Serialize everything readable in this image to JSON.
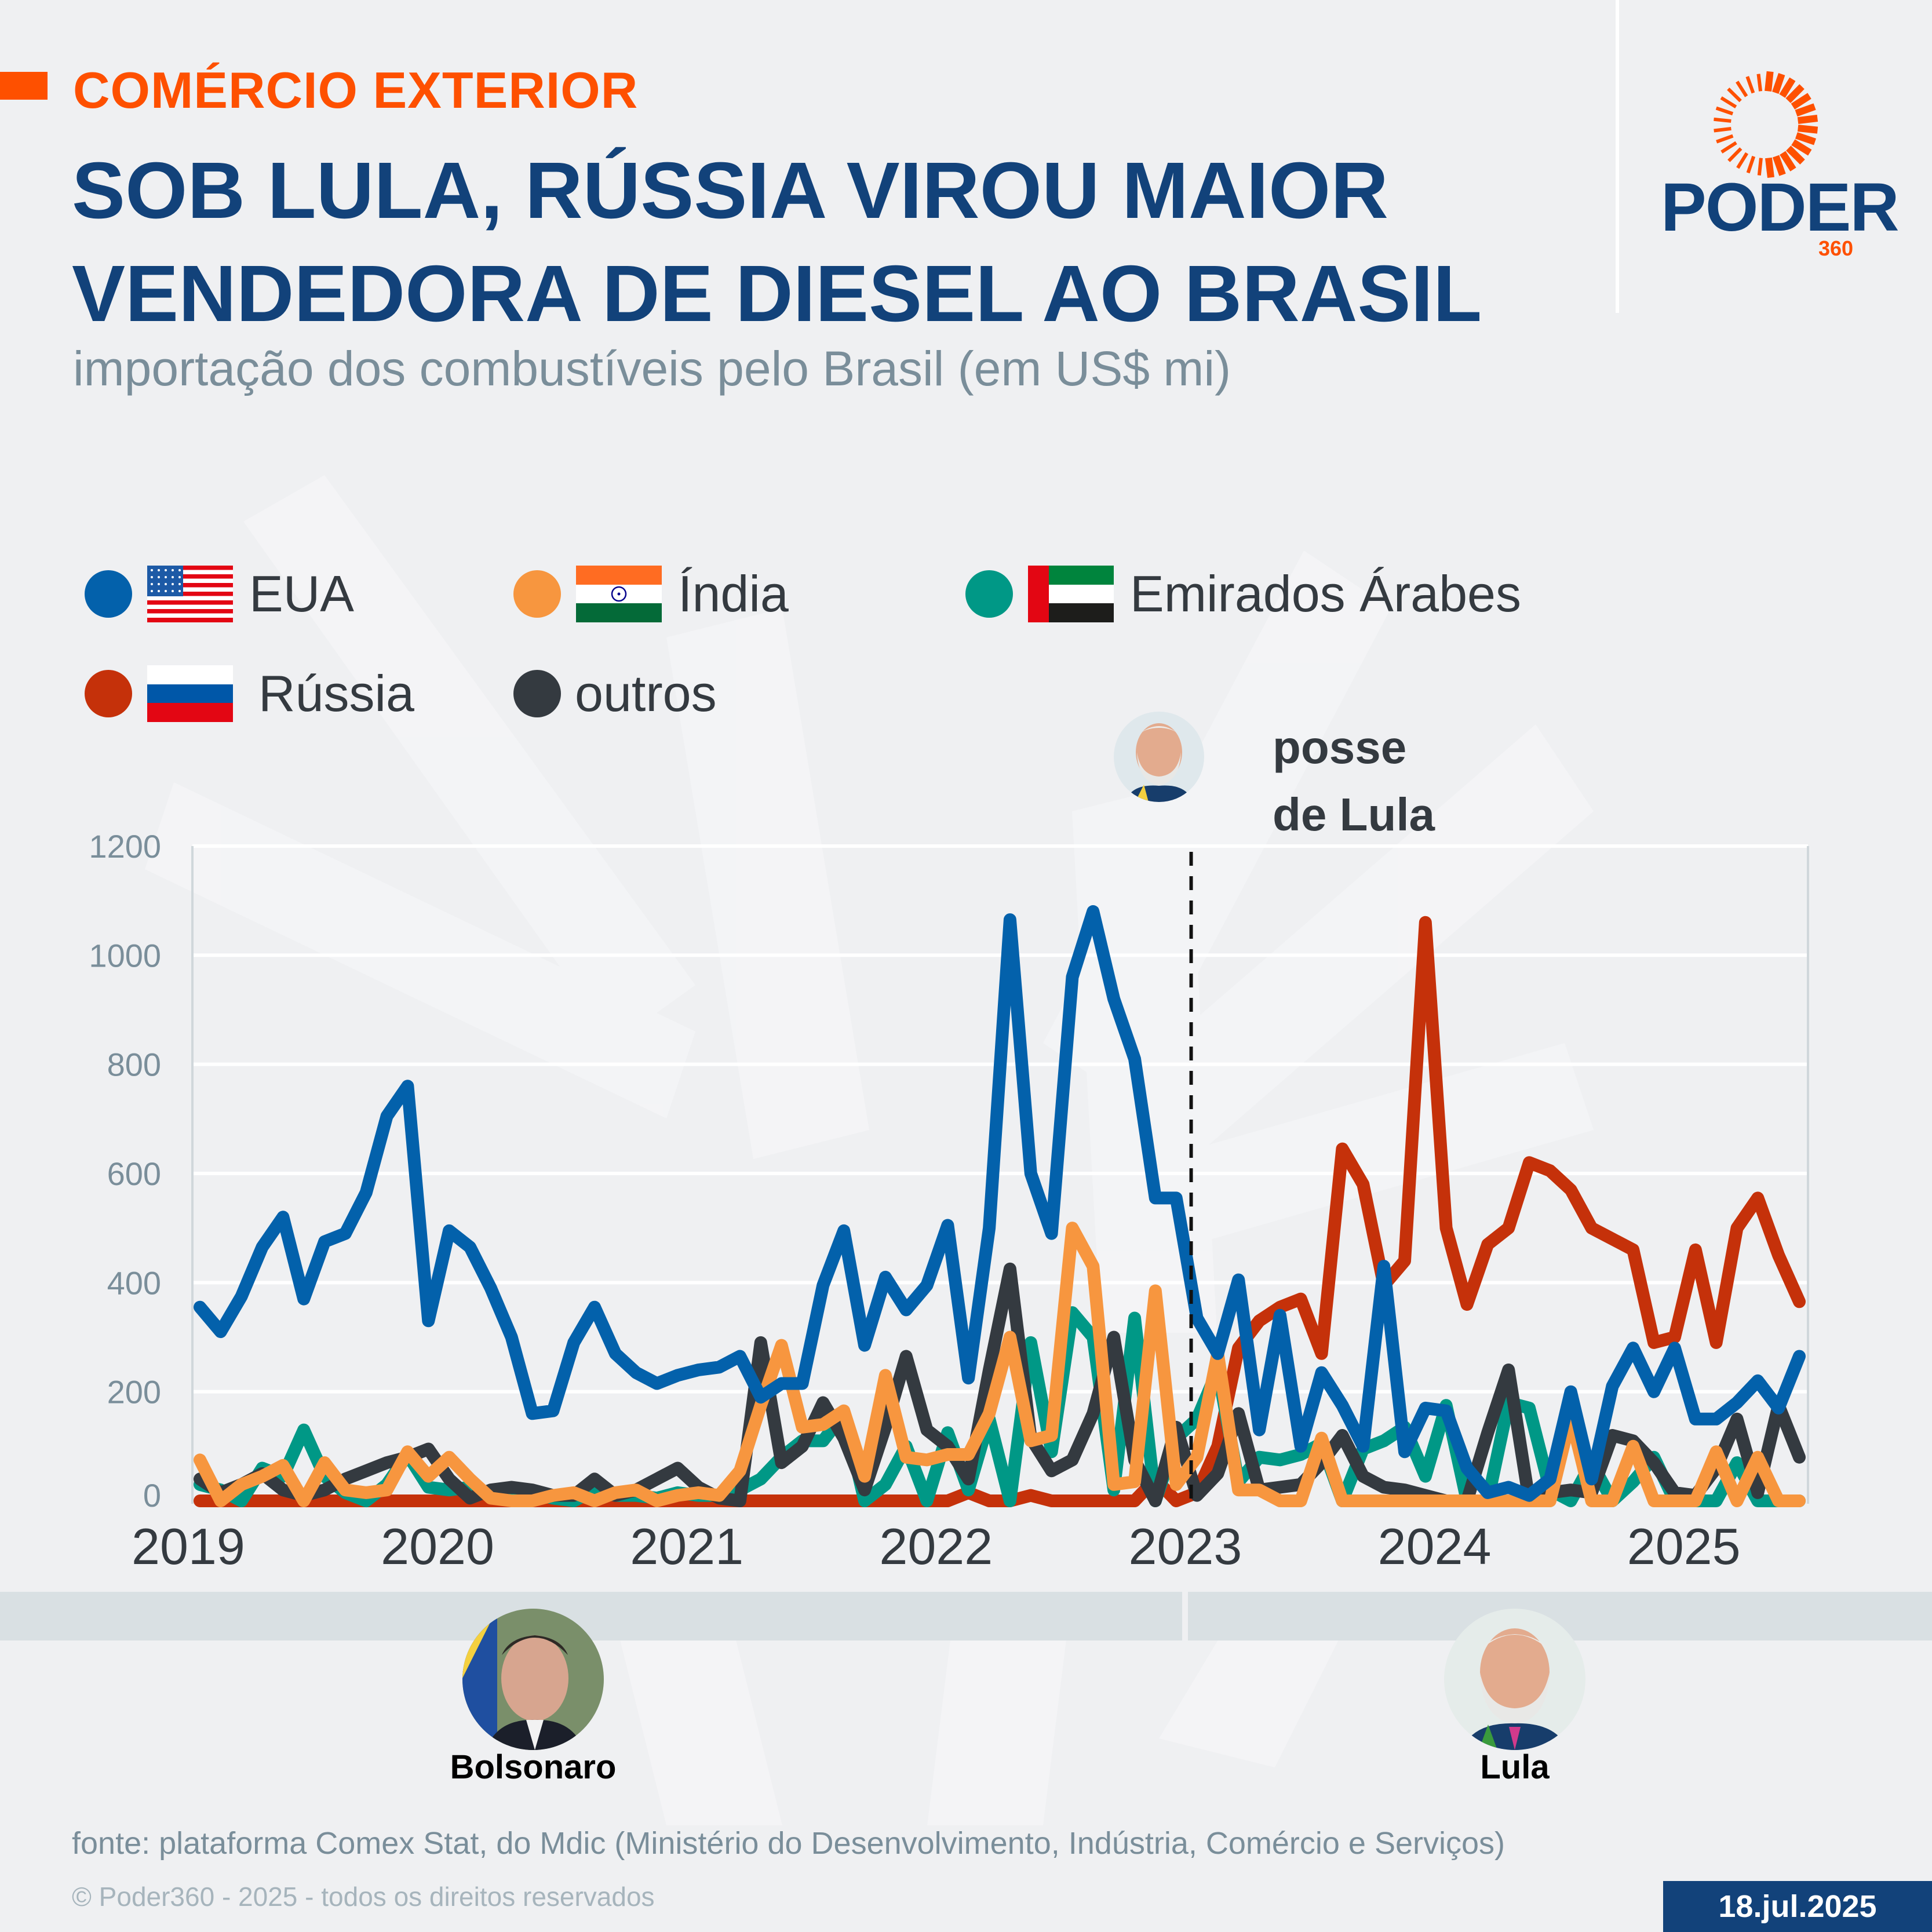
{
  "header": {
    "kicker": "COMÉRCIO EXTERIOR",
    "title_line1": "SOB LULA, RÚSSIA VIROU MAIOR",
    "title_line2": "VENDEDORA DE DIESEL AO BRASIL",
    "subtitle": "importação dos combustíveis pelo Brasil (em US$ mi)"
  },
  "brand": {
    "name": "PODER",
    "number": "360",
    "colors": {
      "primary": "#12427a",
      "accent": "#fe5000"
    }
  },
  "legend": [
    {
      "label": "EUA",
      "color": "#0361ab",
      "flag": "usa-flag-icon"
    },
    {
      "label": "Índia",
      "color": "#f7963f",
      "flag": "india-flag-icon"
    },
    {
      "label": "Emirados Árabes",
      "color": "#009886",
      "flag": "uae-flag-icon"
    },
    {
      "label": "Rússia",
      "color": "#c5310a",
      "flag": "russia-flag-icon"
    },
    {
      "label": "outros",
      "color": "#343a40",
      "flag": null
    }
  ],
  "annotation": {
    "line1": "posse",
    "line2": "de Lula"
  },
  "presidents": [
    {
      "name": "Bolsonaro"
    },
    {
      "name": "Lula"
    }
  ],
  "footer": {
    "source": "fonte: plataforma Comex Stat, do Mdic (Ministério do Desenvolvimento, Indústria, Comércio e Serviços)",
    "copyright": "© Poder360 - 2025 - todos os direitos reservados",
    "date": "18.jul.2025"
  },
  "chart_data": {
    "type": "line",
    "title": "importação dos combustíveis pelo Brasil (em US$ mi)",
    "xlabel": "",
    "ylabel": "US$ mi",
    "ylim": [
      0,
      1200
    ],
    "yticks": [
      0,
      200,
      400,
      600,
      800,
      1000,
      1200
    ],
    "xtick_labels": [
      "2019",
      "2020",
      "2021",
      "2022",
      "2023",
      "2024",
      "2025"
    ],
    "x_start": "2019-01",
    "x_end": "2025-06",
    "frequency": "monthly",
    "grid": true,
    "legend_position": "top-left",
    "event_marker": {
      "label": "posse de Lula",
      "date": "2023-01"
    },
    "series": [
      {
        "name": "EUA",
        "color": "#0361ab",
        "values": [
          355,
          310,
          375,
          465,
          520,
          370,
          475,
          490,
          565,
          705,
          760,
          330,
          495,
          465,
          390,
          300,
          160,
          165,
          290,
          355,
          270,
          235,
          215,
          230,
          240,
          245,
          265,
          190,
          215,
          215,
          395,
          495,
          285,
          410,
          350,
          395,
          505,
          225,
          500,
          1065,
          600,
          490,
          960,
          1080,
          920,
          810,
          555,
          555,
          335,
          270,
          405,
          130,
          340,
          100,
          235,
          175,
          100,
          430,
          90,
          170,
          165,
          60,
          15,
          25,
          10,
          40,
          200,
          40,
          210,
          280,
          200,
          280,
          150,
          150,
          180,
          220,
          170,
          265
        ]
      },
      {
        "name": "Índia",
        "color": "#f7963f",
        "values": [
          75,
          0,
          30,
          45,
          65,
          0,
          70,
          20,
          15,
          20,
          90,
          45,
          80,
          40,
          5,
          0,
          0,
          10,
          15,
          0,
          15,
          20,
          0,
          10,
          15,
          10,
          55,
          175,
          285,
          135,
          140,
          165,
          45,
          230,
          80,
          75,
          85,
          85,
          160,
          300,
          110,
          120,
          500,
          430,
          30,
          35,
          385,
          30,
          80,
          270,
          20,
          20,
          0,
          0,
          115,
          0,
          0,
          0,
          0,
          0,
          0,
          0,
          0,
          0,
          0,
          0,
          155,
          0,
          0,
          100,
          0,
          0,
          0,
          90,
          0,
          80,
          0,
          0
        ]
      },
      {
        "name": "Emirados Árabes",
        "color": "#009886",
        "values": [
          30,
          20,
          0,
          60,
          45,
          130,
          45,
          15,
          0,
          30,
          85,
          25,
          20,
          25,
          10,
          15,
          15,
          5,
          0,
          20,
          10,
          10,
          5,
          15,
          10,
          10,
          20,
          40,
          80,
          110,
          110,
          160,
          0,
          30,
          100,
          0,
          125,
          20,
          150,
          0,
          290,
          90,
          345,
          300,
          20,
          335,
          0,
          115,
          150,
          240,
          35,
          80,
          75,
          85,
          105,
          0,
          95,
          110,
          135,
          45,
          175,
          0,
          0,
          180,
          170,
          20,
          0,
          70,
          0,
          35,
          80,
          0,
          0,
          0,
          70,
          0,
          0,
          0
        ]
      },
      {
        "name": "Rússia",
        "color": "#c5310a",
        "values": [
          0,
          0,
          0,
          0,
          0,
          0,
          0,
          0,
          0,
          0,
          0,
          0,
          0,
          0,
          0,
          0,
          0,
          0,
          0,
          0,
          0,
          0,
          0,
          0,
          0,
          0,
          0,
          0,
          0,
          0,
          0,
          0,
          0,
          0,
          0,
          0,
          0,
          15,
          0,
          0,
          10,
          0,
          0,
          0,
          0,
          0,
          40,
          0,
          15,
          100,
          280,
          330,
          355,
          370,
          270,
          645,
          580,
          395,
          440,
          1060,
          500,
          360,
          470,
          500,
          620,
          605,
          570,
          500,
          480,
          460,
          290,
          300,
          460,
          290,
          500,
          555,
          450,
          365
        ]
      },
      {
        "name": "outros",
        "color": "#343a40",
        "values": [
          40,
          15,
          30,
          50,
          20,
          10,
          20,
          40,
          55,
          70,
          80,
          95,
          40,
          5,
          20,
          25,
          20,
          10,
          10,
          40,
          10,
          20,
          40,
          60,
          25,
          5,
          0,
          290,
          70,
          100,
          180,
          115,
          20,
          135,
          265,
          130,
          100,
          40,
          240,
          425,
          115,
          55,
          75,
          160,
          300,
          75,
          0,
          135,
          10,
          50,
          160,
          20,
          25,
          30,
          70,
          120,
          45,
          25,
          20,
          10,
          0,
          0,
          125,
          240,
          0,
          15,
          20,
          15,
          120,
          110,
          70,
          15,
          10,
          60,
          150,
          15,
          175,
          80
        ]
      }
    ]
  }
}
